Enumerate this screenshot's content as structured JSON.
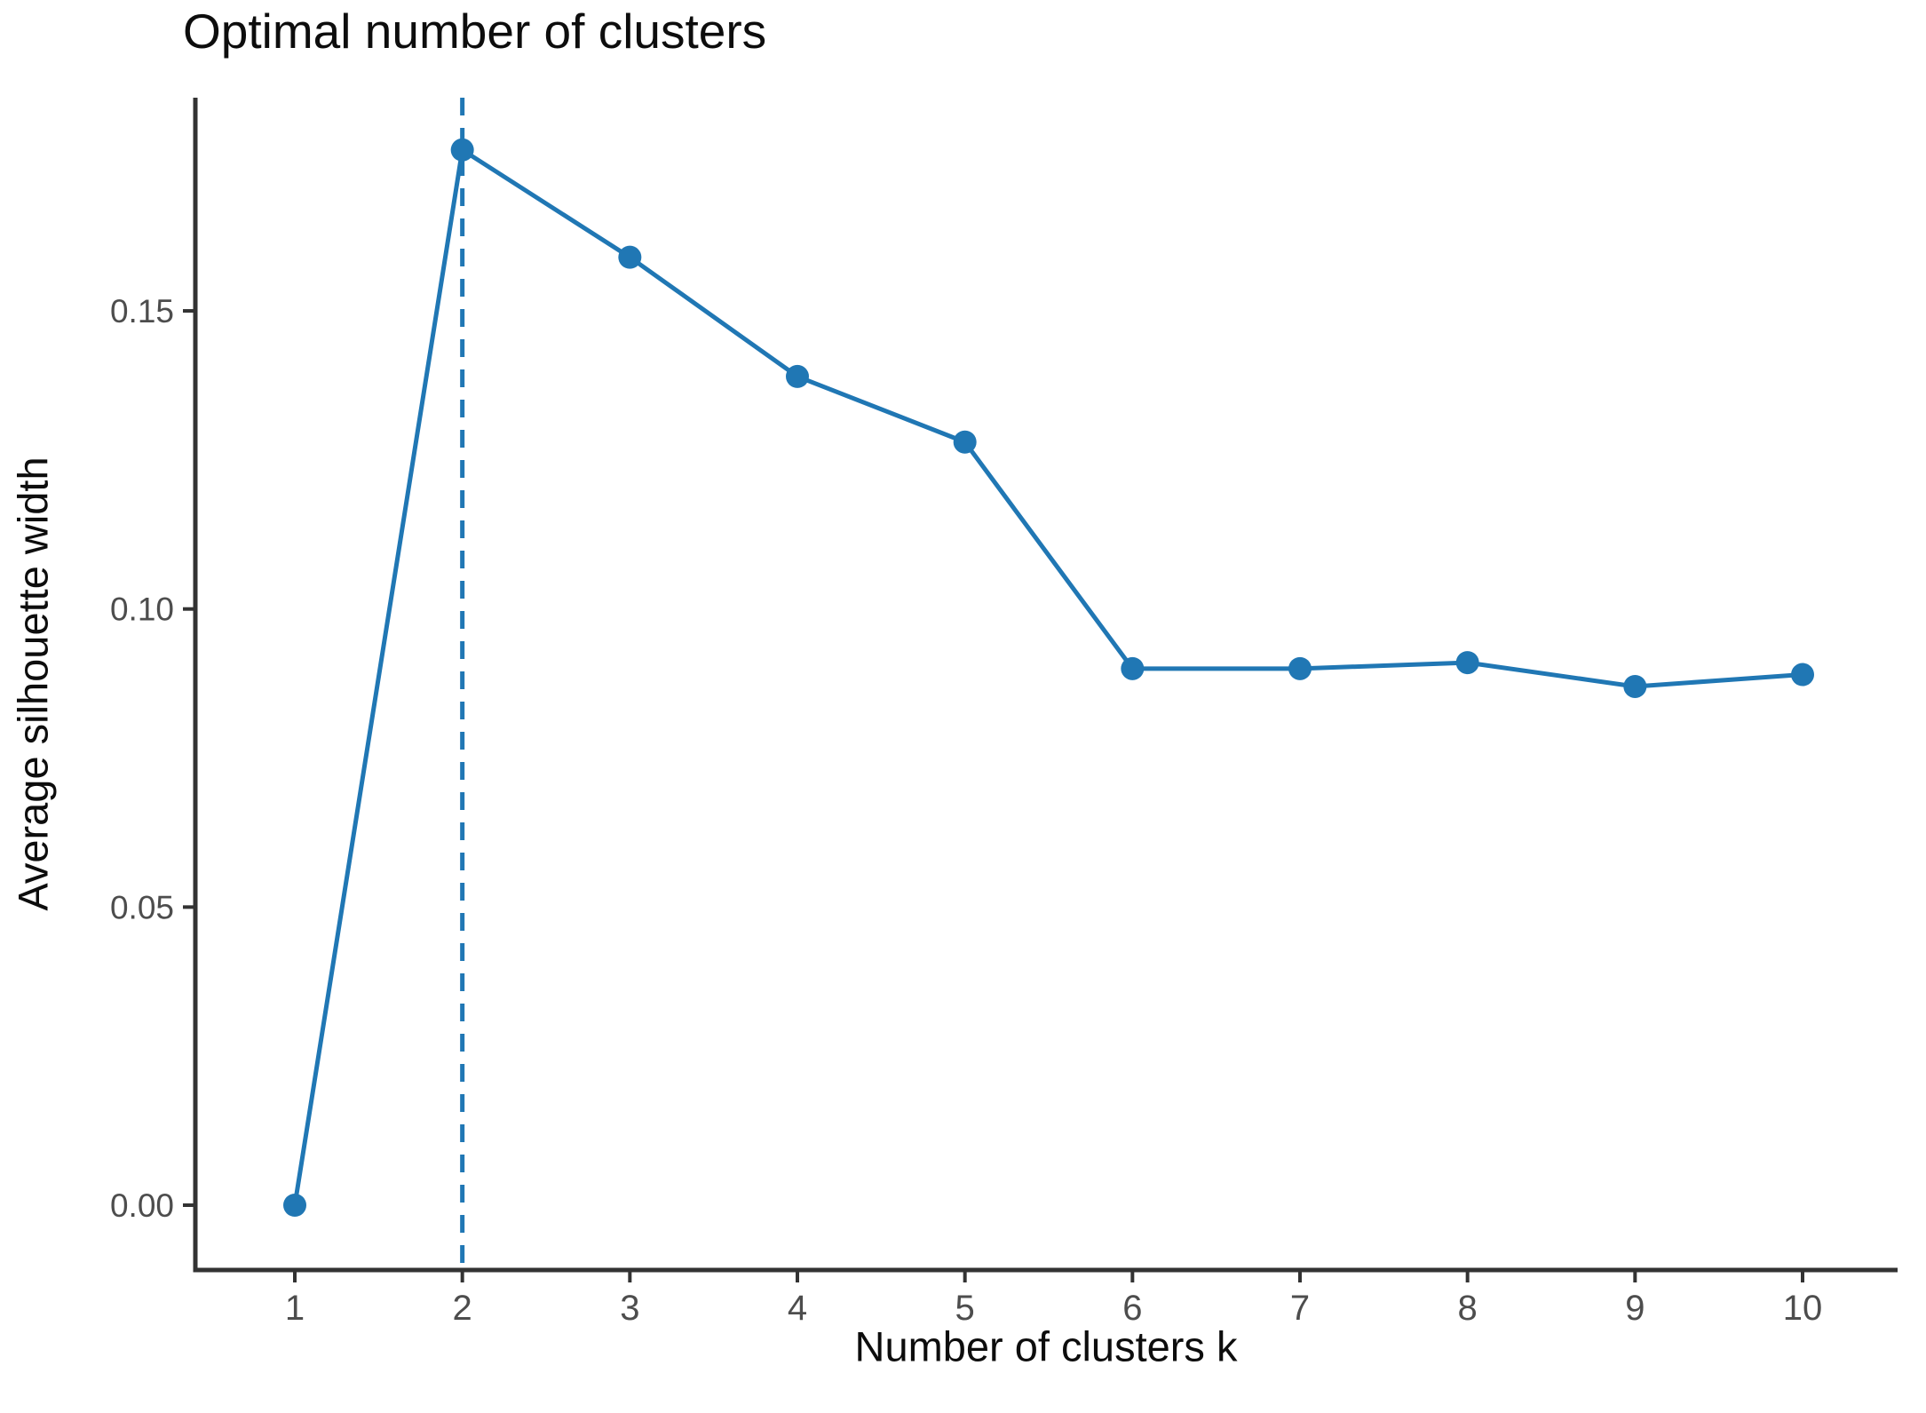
{
  "colors": {
    "background": "#ffffff",
    "series": "#2077b4",
    "axis": "#333333",
    "tick_label": "#4d4d4d",
    "text": "#0d0d0d"
  },
  "chart_data": {
    "type": "line",
    "title": "Optimal number of clusters",
    "xlabel": "Number of clusters k",
    "ylabel": "Average silhouette width",
    "series_name": "Average silhouette width",
    "x": [
      1,
      2,
      3,
      4,
      5,
      6,
      7,
      8,
      9,
      10
    ],
    "values": [
      0.0,
      0.177,
      0.159,
      0.139,
      0.128,
      0.09,
      0.09,
      0.091,
      0.087,
      0.089
    ],
    "xlim": [
      1,
      10
    ],
    "ylim": [
      -0.011,
      0.186
    ],
    "x_ticks": {
      "values": [
        1,
        2,
        3,
        4,
        5,
        6,
        7,
        8,
        9,
        10
      ],
      "labels": [
        "1",
        "2",
        "3",
        "4",
        "5",
        "6",
        "7",
        "8",
        "9",
        "10"
      ]
    },
    "y_ticks": {
      "values": [
        0.0,
        0.05,
        0.1,
        0.15
      ],
      "labels": [
        "0.00",
        "0.05",
        "0.10",
        "0.15"
      ]
    },
    "vline": {
      "x": 2,
      "style": "dashed"
    },
    "grid": "off",
    "legend": "none",
    "marker": "circle"
  }
}
